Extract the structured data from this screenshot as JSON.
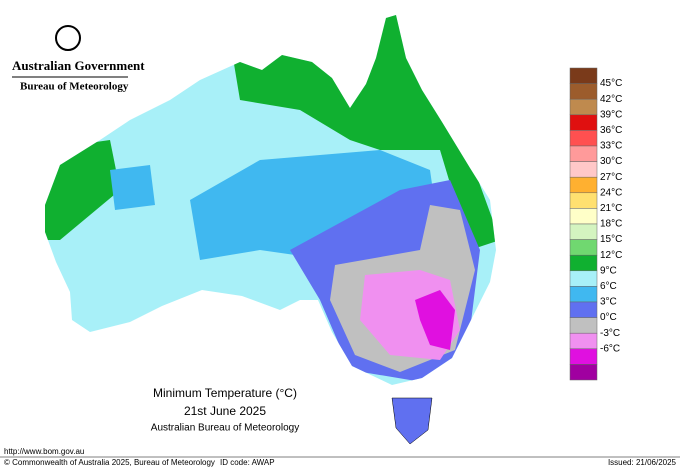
{
  "logo": {
    "line1": "Australian Government",
    "line2": "Bureau of Meteorology"
  },
  "legend": {
    "labels": [
      "45°C",
      "42°C",
      "39°C",
      "36°C",
      "33°C",
      "30°C",
      "27°C",
      "24°C",
      "21°C",
      "18°C",
      "15°C",
      "12°C",
      "9°C",
      "6°C",
      "3°C",
      "0°C",
      "-3°C",
      "-6°C"
    ],
    "colors": [
      "#7a3a1a",
      "#9c5c2c",
      "#bf8a4e",
      "#e01010",
      "#ff5050",
      "#ff9a9a",
      "#ffc8c8",
      "#ffb030",
      "#ffe070",
      "#ffffc8",
      "#d4f4c0",
      "#70d870",
      "#10b030",
      "#a8f0f8",
      "#40b8f0",
      "#6070f0",
      "#c0c0c0",
      "#f090f0",
      "#e010e0",
      "#a000a0"
    ]
  },
  "caption": {
    "title": "Minimum Temperature (°C)",
    "date": "21st June 2025",
    "source": "Australian Bureau of Meteorology"
  },
  "footer": {
    "url": "http://www.bom.gov.au",
    "copyright": "© Commonwealth of Australia 2025, Bureau of Meteorology",
    "id_code": "ID code: AWAP",
    "issued": "Issued: 21/06/2025"
  }
}
